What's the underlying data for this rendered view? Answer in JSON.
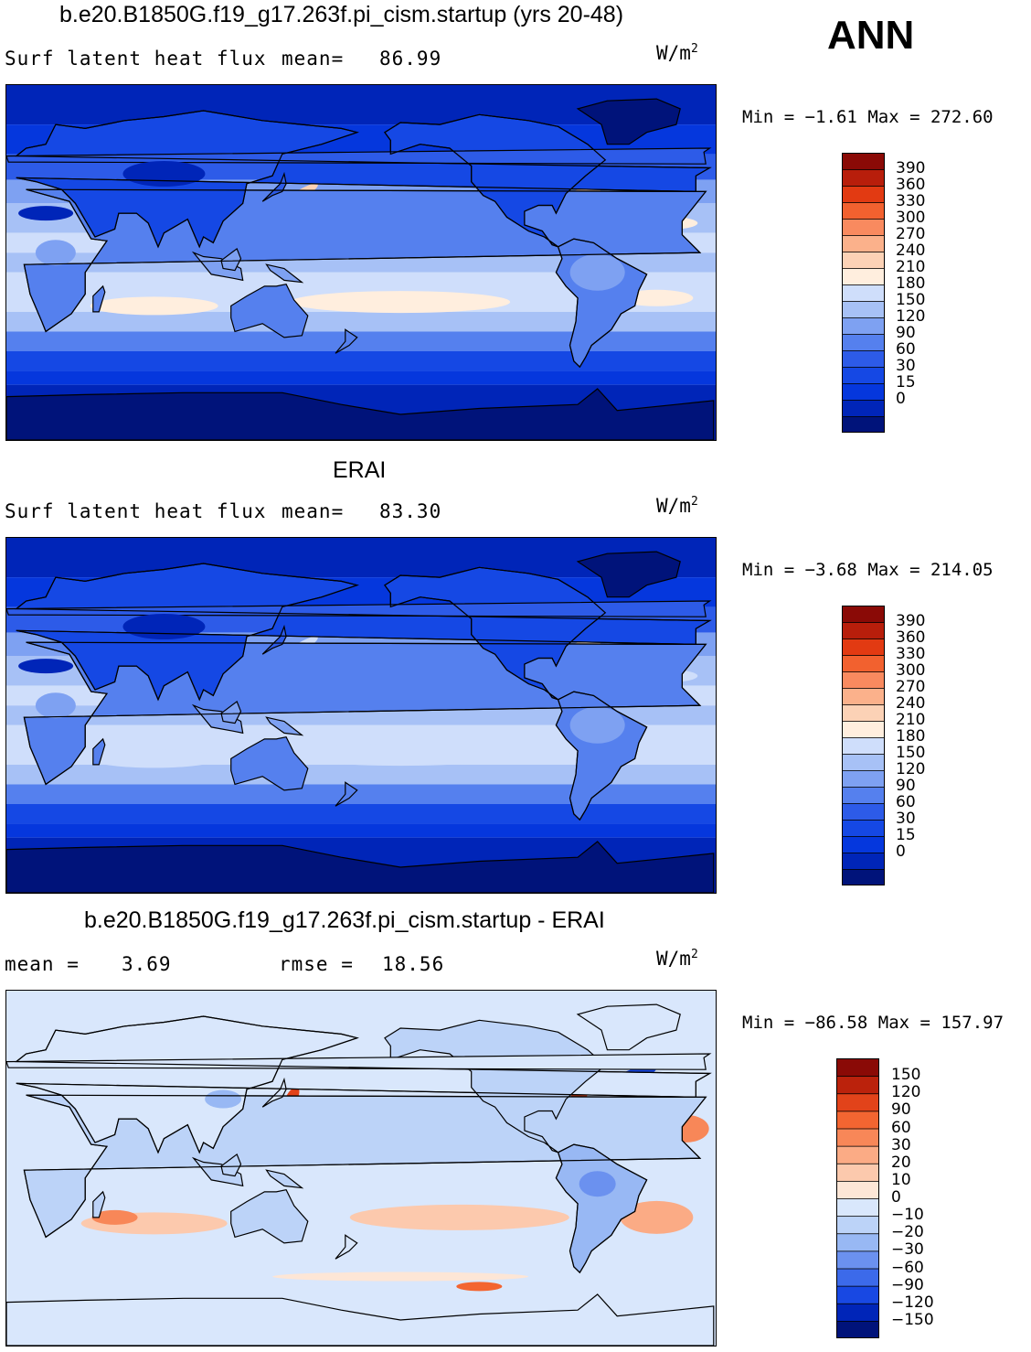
{
  "season_label": "ANN",
  "colors": {
    "scale_abs": [
      "#00137a",
      "#0025b8",
      "#0537dd",
      "#1548e4",
      "#2d5be8",
      "#5580ee",
      "#7ea1f2",
      "#a7c1f6",
      "#cfdefb",
      "#ffeede",
      "#fcd2b6",
      "#fbb18b",
      "#f98a5f",
      "#f2612f",
      "#e23a12",
      "#b81e0b",
      "#8a0a06"
    ],
    "scale_diff": [
      "#00137a",
      "#0025b8",
      "#1848e3",
      "#3c6aea",
      "#6b91ef",
      "#98b8f4",
      "#bcd3f8",
      "#d9e7fc",
      "#fde6d6",
      "#fcc9ad",
      "#fbab85",
      "#f88758",
      "#f36531",
      "#e2431a",
      "#bb220c",
      "#8a0a06"
    ],
    "coastline": "#000000",
    "frame": "#000000"
  },
  "chart_data": [
    {
      "type": "heatmap",
      "title": "b.e20.B1850G.f19_g17.263f.pi_cism.startup (yrs 20-48)",
      "left_label": "Surf latent heat flux",
      "mean_label": "mean=",
      "mean_value": "86.99",
      "units": "W/m",
      "units_sup": "2",
      "min_label": "Min =",
      "min_value": "−1.61",
      "max_label": "Max =",
      "max_value": "272.60",
      "levels": [
        "390",
        "360",
        "330",
        "300",
        "270",
        "240",
        "210",
        "180",
        "150",
        "120",
        "90",
        "60",
        "30",
        "15",
        "0"
      ],
      "min": -1.61,
      "max": 272.6,
      "mean": 86.99
    },
    {
      "type": "heatmap",
      "title": "ERAI",
      "left_label": "Surf latent heat flux",
      "mean_label": "mean=",
      "mean_value": "83.30",
      "units": "W/m",
      "units_sup": "2",
      "min_label": "Min =",
      "min_value": "−3.68",
      "max_label": "Max =",
      "max_value": "214.05",
      "levels": [
        "390",
        "360",
        "330",
        "300",
        "270",
        "240",
        "210",
        "180",
        "150",
        "120",
        "90",
        "60",
        "30",
        "15",
        "0"
      ],
      "min": -3.68,
      "max": 214.05,
      "mean": 83.3
    },
    {
      "type": "heatmap",
      "title": "b.e20.B1850G.f19_g17.263f.pi_cism.startup - ERAI",
      "left_label": "mean =",
      "mean_label": "",
      "mean_value": "3.69",
      "rmse_label": "rmse =",
      "rmse_value": "18.56",
      "units": "W/m",
      "units_sup": "2",
      "min_label": "Min =",
      "min_value": "−86.58",
      "max_label": "Max =",
      "max_value": "157.97",
      "levels": [
        "150",
        "120",
        "90",
        "60",
        "30",
        "20",
        "10",
        "0",
        "−10",
        "−20",
        "−30",
        "−60",
        "−90",
        "−120",
        "−150"
      ],
      "min": -86.58,
      "max": 157.97,
      "mean": 3.69,
      "rmse": 18.56
    }
  ]
}
